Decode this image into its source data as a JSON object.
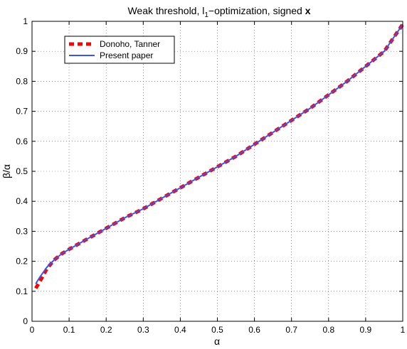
{
  "chart_data": {
    "type": "line",
    "title": {
      "prefix": "Weak threshold, l",
      "subscript": "1",
      "mid": "−optimization, signed ",
      "bold": "x"
    },
    "xlabel": "α",
    "ylabel": "β/α",
    "xlim": [
      0,
      1
    ],
    "ylim": [
      0,
      1
    ],
    "xticks": [
      "0",
      "0.1",
      "0.2",
      "0.3",
      "0.4",
      "0.5",
      "0.6",
      "0.7",
      "0.8",
      "0.9",
      "1"
    ],
    "yticks": [
      "0",
      "0.1",
      "0.2",
      "0.3",
      "0.4",
      "0.5",
      "0.6",
      "0.7",
      "0.8",
      "0.9",
      "1"
    ],
    "grid": true,
    "legend_position": "top-left",
    "series": [
      {
        "name": "Donoho, Tanner",
        "color": "#ff0000",
        "style": "dashed",
        "x": [
          0.01,
          0.02,
          0.04,
          0.06,
          0.08,
          0.1,
          0.15,
          0.2,
          0.25,
          0.3,
          0.35,
          0.4,
          0.45,
          0.5,
          0.55,
          0.6,
          0.65,
          0.7,
          0.75,
          0.8,
          0.85,
          0.9,
          0.95,
          1.0
        ],
        "y": [
          0.11,
          0.13,
          0.175,
          0.205,
          0.225,
          0.24,
          0.275,
          0.31,
          0.345,
          0.375,
          0.41,
          0.445,
          0.48,
          0.515,
          0.55,
          0.59,
          0.63,
          0.67,
          0.71,
          0.755,
          0.8,
          0.85,
          0.9,
          0.99
        ]
      },
      {
        "name": "Present paper",
        "color": "#3d55e6",
        "style": "solid",
        "x": [
          0.01,
          0.02,
          0.04,
          0.06,
          0.08,
          0.1,
          0.15,
          0.2,
          0.25,
          0.3,
          0.35,
          0.4,
          0.45,
          0.5,
          0.55,
          0.6,
          0.65,
          0.7,
          0.75,
          0.8,
          0.85,
          0.9,
          0.95,
          1.0
        ],
        "y": [
          0.125,
          0.145,
          0.18,
          0.205,
          0.225,
          0.24,
          0.275,
          0.31,
          0.345,
          0.375,
          0.41,
          0.445,
          0.48,
          0.515,
          0.55,
          0.59,
          0.63,
          0.67,
          0.71,
          0.755,
          0.8,
          0.85,
          0.9,
          0.99
        ]
      }
    ]
  }
}
